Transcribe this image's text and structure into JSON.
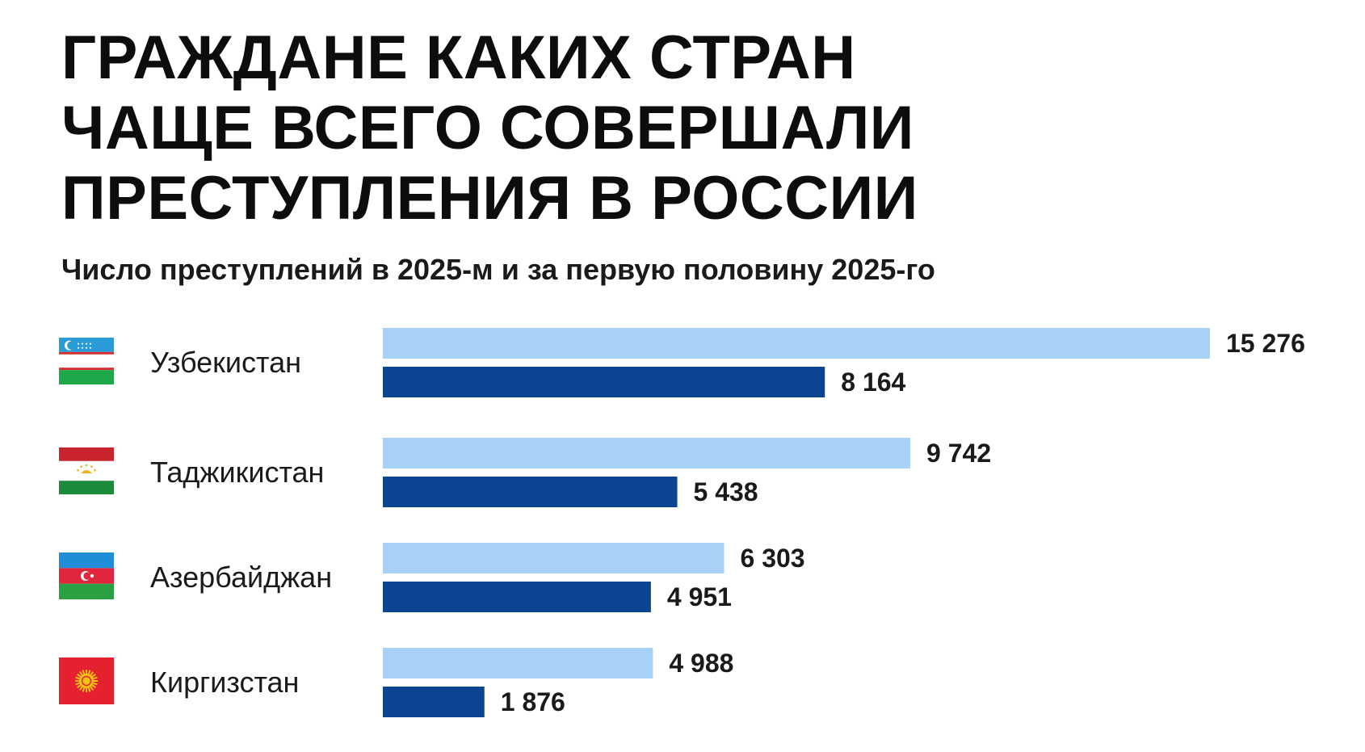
{
  "title_lines": [
    "ГРАЖДАНЕ КАКИХ СТРАН",
    "ЧАЩЕ ВСЕГО СОВЕРШАЛИ",
    "ПРЕСТУПЛЕНИЯ В РОССИИ"
  ],
  "subtitle": "Число преступлений в 2025-м и за первую половину 2025-го",
  "colors": {
    "bar_light": "#a8d1f8",
    "bar_dark": "#0b4592"
  },
  "chart_data": {
    "type": "bar",
    "orientation": "horizontal",
    "title": "ГРАЖДАНЕ КАКИХ СТРАН ЧАЩЕ ВСЕГО СОВЕРШАЛИ ПРЕСТУПЛЕНИЯ В РОССИИ",
    "subtitle": "Число преступлений в 2025-м и за первую половину 2025-го",
    "categories": [
      "Узбекистан",
      "Таджикистан",
      "Азербайджан",
      "Киргизстан"
    ],
    "flags": [
      "uzbekistan-flag-icon",
      "tajikistan-flag-icon",
      "azerbaijan-flag-icon",
      "kyrgyzstan-flag-icon"
    ],
    "series": [
      {
        "values": [
          15276,
          9742,
          6303,
          4988
        ],
        "labels": [
          "15 276",
          "9 742",
          "6 303",
          "4 988"
        ],
        "color": "#a8d1f8"
      },
      {
        "values": [
          8164,
          5438,
          4951,
          1876
        ],
        "labels": [
          "8 164",
          "5 438",
          "4 951",
          "1 876"
        ],
        "color": "#0b4592"
      }
    ],
    "grid": false,
    "legend": "none"
  }
}
